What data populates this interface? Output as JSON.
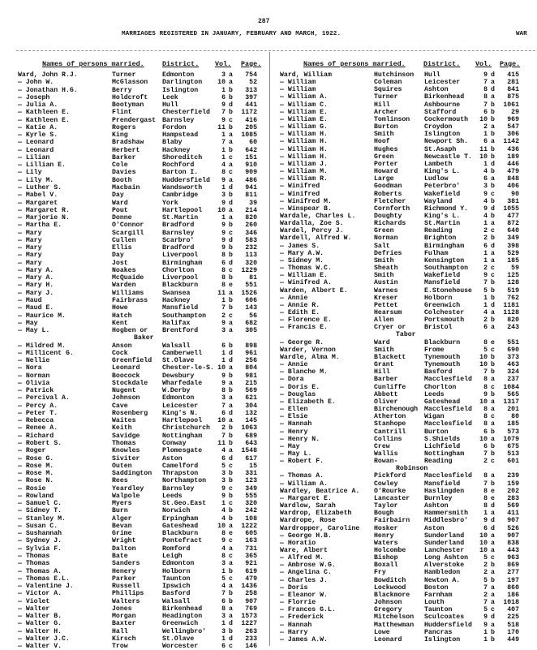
{
  "page_number": "287",
  "title": "MARRIAGES REGISTERED IN JANUARY, FEBRUARY AND MARCH, 1922.",
  "section_mark": "WAR",
  "headers": {
    "names": "Names of persons married.",
    "district": "District.",
    "vol": "Vol.",
    "page": "Page."
  },
  "left_entries": [
    [
      "Ward, John R.J.",
      "Turner",
      "Edmonton",
      "3",
      "a",
      "754"
    ],
    [
      "— John W.",
      "McGlasson",
      "Darlington",
      "10",
      "a",
      "52"
    ],
    [
      "— Jonathan H.G.",
      "Berry",
      "Islington",
      "1",
      "b",
      "313"
    ],
    [
      "— Joseph",
      "Holdcroft",
      "Leek",
      "6",
      "b",
      "397"
    ],
    [
      "— Julia A.",
      "Bootyman",
      "Hull",
      "9",
      "d",
      "441"
    ],
    [
      "— Kathleen E.",
      "Flint",
      "Chesterfield",
      "7",
      "b",
      "1172"
    ],
    [
      "— Kathleen E.",
      "Prendergast",
      "Barnsley",
      "9",
      "c",
      "416"
    ],
    [
      "— Katie A.",
      "Rogers",
      "Fordon",
      "11",
      "b",
      "205"
    ],
    [
      "— Kyrle S.",
      "King",
      "Hampstead",
      "1",
      "a",
      "1085"
    ],
    [
      "— Leonard",
      "Bradshaw",
      "Blaby",
      "7",
      "a",
      "60"
    ],
    [
      "— Leonard",
      "Herbert",
      "Hackney",
      "1",
      "b",
      "642"
    ],
    [
      "— Lilian",
      "Barker",
      "Shoreditch",
      "1",
      "c",
      "151"
    ],
    [
      "— Lillian E.",
      "Cole",
      "Rochford",
      "4",
      "a",
      "910"
    ],
    [
      "— Lily",
      "Davies",
      "Barton I.",
      "8",
      "c",
      "909"
    ],
    [
      "— Lily M.",
      "Booth",
      "Huddersfield",
      "9",
      "a",
      "486"
    ],
    [
      "— Luther S.",
      "Macbain",
      "Wandsworth",
      "1",
      "d",
      "941"
    ],
    [
      "— Mabel V.",
      "Day",
      "Cambridge",
      "3",
      "b",
      "811"
    ],
    [
      "— Margaret",
      "Ward",
      "York",
      "9",
      "d",
      "39"
    ],
    [
      "— Margaret R.",
      "Pout",
      "Hartlepool",
      "10",
      "a",
      "214"
    ],
    [
      "— Marjorie N.",
      "Donne",
      "St.Martin",
      "1",
      "a",
      "820"
    ],
    [
      "— Martha E.",
      "O'Connor",
      "Bradford",
      "9",
      "b",
      "260"
    ],
    [
      "— Mary",
      "Scargill",
      "Barnsley",
      "9",
      "c",
      "346"
    ],
    [
      "— Mary",
      "Cullen",
      "Scarbro'",
      "9",
      "d",
      "583"
    ],
    [
      "— Mary",
      "Ellis",
      "Bradford",
      "9",
      "b",
      "232"
    ],
    [
      "— Mary",
      "Day",
      "Liverpool",
      "8",
      "b",
      "113"
    ],
    [
      "— Mary",
      "Jost",
      "Birmingham",
      "6",
      "d",
      "320"
    ],
    [
      "— Mary A.",
      "Noakes",
      "Chorlton",
      "8",
      "c",
      "1229"
    ],
    [
      "— Mary A.",
      "McQuaide",
      "Liverpool",
      "8",
      "b",
      "81"
    ],
    [
      "— Mary H.",
      "Warden",
      "Blackburn",
      "8",
      "e",
      "551"
    ],
    [
      "— Mary J.",
      "Williams",
      "Swansea",
      "11",
      "a",
      "1526"
    ],
    [
      "— Maud",
      "Fairbrass",
      "Hackney",
      "1",
      "b",
      "606"
    ],
    [
      "— Maud E.",
      "Howe",
      "Mansfield",
      "7",
      "b",
      "143"
    ],
    [
      "— Maurice M.",
      "Hatch",
      "Southampton",
      "2",
      "c",
      "56"
    ],
    [
      "— May",
      "Kent",
      "Halifax",
      "9",
      "a",
      "682"
    ],
    [
      "— May L.",
      "Hogben or",
      "Brentford",
      "3",
      "a",
      "305",
      "Baker"
    ],
    [
      "— Mildred M.",
      "Anson",
      "Walsall",
      "6",
      "b",
      "898"
    ],
    [
      "— Millicent G.",
      "Cock",
      "Camberwell",
      "1",
      "d",
      "961"
    ],
    [
      "— Nellie",
      "Greenfield",
      "St.Olave",
      "1",
      "d",
      "256"
    ],
    [
      "— Nora",
      "Leonard",
      "Chester-le-S.",
      "10",
      "a",
      "804"
    ],
    [
      "— Norman",
      "Boocock",
      "Dewsbury",
      "9",
      "b",
      "981"
    ],
    [
      "— Olivia",
      "Stockdale",
      "Wharfedale",
      "9",
      "a",
      "215"
    ],
    [
      "— Patrick",
      "Nugent",
      "W.Derby",
      "8",
      "b",
      "569"
    ],
    [
      "— Percival A.",
      "Johnson",
      "Edmonton",
      "3",
      "a",
      "621"
    ],
    [
      "— Percy A.",
      "Cave",
      "Leicester",
      "7",
      "a",
      "304"
    ],
    [
      "— Peter T.",
      "Rosenberg",
      "King's N.",
      "6",
      "d",
      "132"
    ],
    [
      "— Rebecca",
      "Waites",
      "Hartlepool",
      "10",
      "a",
      "145"
    ],
    [
      "— Renee A.",
      "Keith",
      "Christchurch",
      "2",
      "b",
      "1063"
    ],
    [
      "— Richard",
      "Savidge",
      "Nottingham",
      "7",
      "b",
      "689"
    ],
    [
      "— Robert S.",
      "Thomas",
      "Conway",
      "11",
      "b",
      "643"
    ],
    [
      "— Roger",
      "Knowles",
      "Plomesgate",
      "4",
      "a",
      "1548"
    ],
    [
      "— Rose G.",
      "Siviter",
      "Aston",
      "6",
      "d",
      "617"
    ],
    [
      "— Rose M.",
      "Outen",
      "Camelford",
      "5",
      "c",
      "15"
    ],
    [
      "— Rose M.",
      "Saddington",
      "Thrapston",
      "3",
      "b",
      "331"
    ],
    [
      "— Rose N.",
      "Rees",
      "Northampton",
      "3",
      "b",
      "123"
    ],
    [
      "— Rosie",
      "Yeardley",
      "Barnsley",
      "9",
      "c",
      "349"
    ],
    [
      "— Rowland",
      "Walpole",
      "Leeds",
      "9",
      "b",
      "555"
    ],
    [
      "— Samuel C.",
      "Myers",
      "St.Geo.East",
      "1",
      "c",
      "320"
    ],
    [
      "— Sidney T.",
      "Burn",
      "Norwich",
      "4",
      "b",
      "242"
    ],
    [
      "— Stanley M.",
      "Alger",
      "Erpingham",
      "4",
      "b",
      "108"
    ],
    [
      "— Susan C.",
      "Bevan",
      "Gateshead",
      "10",
      "a",
      "1222"
    ],
    [
      "— Sushannah",
      "Grime",
      "Blackburn",
      "8",
      "e",
      "605"
    ],
    [
      "— Sydney J.",
      "Wright",
      "Pontefract",
      "9",
      "c",
      "163"
    ],
    [
      "— Sylvia F.",
      "Dalton",
      "Romford",
      "4",
      "a",
      "731"
    ],
    [
      "— Thomas",
      "Bate",
      "Leigh",
      "8",
      "c",
      "365"
    ],
    [
      "— Thomas",
      "Sanders",
      "Edmonton",
      "3",
      "a",
      "921"
    ],
    [
      "— Thomas A.",
      "Henery",
      "Holborn",
      "1",
      "b",
      "619"
    ],
    [
      "— Thomas E.L.",
      "Parker",
      "Taunton",
      "5",
      "c",
      "479"
    ],
    [
      "— Valentine J.",
      "Russell",
      "Ipswich",
      "4",
      "a",
      "1436"
    ],
    [
      "— Victor A.",
      "Phillips",
      "Basford",
      "7",
      "b",
      "258"
    ],
    [
      "— Violet",
      "Walters",
      "Walsall",
      "6",
      "b",
      "907"
    ],
    [
      "— Walter",
      "Jones",
      "Birkenhead",
      "8",
      "a",
      "769"
    ],
    [
      "— Walter B.",
      "Morgan",
      "Headington",
      "3",
      "a",
      "1573"
    ],
    [
      "— Walter G.",
      "Baxter",
      "Greenwich",
      "1",
      "d",
      "1227"
    ],
    [
      "— Walter H.",
      "Hall",
      "Wellingbro'",
      "3",
      "b",
      "263"
    ],
    [
      "— Walter J.C.",
      "Kirsch",
      "St.Olave",
      "1",
      "d",
      "233"
    ],
    [
      "— Walter V.",
      "Trow",
      "Worcester",
      "6",
      "c",
      "146"
    ]
  ],
  "right_entries": [
    [
      "Ward, William",
      "Hutchinson",
      "Hull",
      "9",
      "d",
      "415"
    ],
    [
      "— William",
      "Coleman",
      "Leicester",
      "7",
      "a",
      "281"
    ],
    [
      "— William",
      "Squires",
      "Ashton",
      "8",
      "d",
      "841"
    ],
    [
      "— William A.",
      "Turner",
      "Birkenhead",
      "8",
      "a",
      "875"
    ],
    [
      "— William C.",
      "Hill",
      "Ashbourne",
      "7",
      "b",
      "1061"
    ],
    [
      "— William E.",
      "Archer",
      "Stafford",
      "6",
      "b",
      "29"
    ],
    [
      "— William E.",
      "Tomlinson",
      "Cockermouth",
      "10",
      "b",
      "969"
    ],
    [
      "— William G.",
      "Burton",
      "Croydon",
      "2",
      "a",
      "547"
    ],
    [
      "— William H.",
      "Smith",
      "Islington",
      "1",
      "b",
      "306"
    ],
    [
      "— William H.",
      "Hoof",
      "Newport Sh.",
      "6",
      "a",
      "1142"
    ],
    [
      "— William H.",
      "Hughes",
      "St.Asaph",
      "11",
      "b",
      "436"
    ],
    [
      "— William H.",
      "Green",
      "Newcastle T.",
      "10",
      "b",
      "189"
    ],
    [
      "— William J.",
      "Porter",
      "Lambeth",
      "1",
      "d",
      "446"
    ],
    [
      "— William M.",
      "Howard",
      "King's L.",
      "4",
      "b",
      "479"
    ],
    [
      "— William R.",
      "Large",
      "Ludlow",
      "6",
      "a",
      "848"
    ],
    [
      "— Winifred",
      "Goodman",
      "Peterbro'",
      "3",
      "b",
      "406"
    ],
    [
      "— Winifred",
      "Roberts",
      "Wakefield",
      "9",
      "c",
      "90"
    ],
    [
      "— Winifred M.",
      "Fletcher",
      "Wayland",
      "4",
      "b",
      "381"
    ],
    [
      "— Winspear B.",
      "Cornforth",
      "Richmond Y.",
      "9",
      "d",
      "1055"
    ],
    [
      "Wardale, Charles L.",
      "Doughty",
      "King's L.",
      "4",
      "b",
      "477"
    ],
    [
      "Wardalla, Zoe S.",
      "Richards",
      "St.Martin",
      "1",
      "a",
      "872"
    ],
    [
      "Wardel, Percy J.",
      "Green",
      "Reading",
      "2",
      "c",
      "640"
    ],
    [
      "Wardell, Alfred W.",
      "Norman",
      "Brighton",
      "2",
      "b",
      "349"
    ],
    [
      "— James S.",
      "Salt",
      "Birmingham",
      "6",
      "d",
      "398"
    ],
    [
      "— Mary A.W.",
      "Defries",
      "Fulham",
      "1",
      "a",
      "529"
    ],
    [
      "— Sidney M.",
      "Smith",
      "Kensington",
      "1",
      "a",
      "185"
    ],
    [
      "— Thomas W.C.",
      "Sheath",
      "Southampton",
      "2",
      "c",
      "59"
    ],
    [
      "— William E.",
      "Smith",
      "Wakefield",
      "9",
      "c",
      "125"
    ],
    [
      "— Winifred A.",
      "Austin",
      "Mansfield",
      "7",
      "b",
      "128"
    ],
    [
      "Warden, Albert E.",
      "Warnes",
      "E.Stonehouse",
      "5",
      "b",
      "519"
    ],
    [
      "— Annie",
      "Kreser",
      "Holborn",
      "1",
      "b",
      "762"
    ],
    [
      "— Annie R.",
      "Pettet",
      "Greenwich",
      "1",
      "d",
      "1181"
    ],
    [
      "— Edith E.",
      "Hearsum",
      "Colchester",
      "4",
      "a",
      "1128"
    ],
    [
      "— Florence E.",
      "Allen",
      "Portsmouth",
      "2",
      "b",
      "820"
    ],
    [
      "— Francis E.",
      "Cryer or",
      "Bristol",
      "6",
      "a",
      "243",
      "Tabor"
    ],
    [
      "— George R.",
      "Ward",
      "Blackburn",
      "8",
      "e",
      "551"
    ],
    [
      "Warder, Vernon",
      "Smith",
      "Frome",
      "5",
      "c",
      "690"
    ],
    [
      "Wardle, Alma M.",
      "Blackett",
      "Tynemouth",
      "10",
      "b",
      "373"
    ],
    [
      "— Annie",
      "Grant",
      "Tynemouth",
      "10",
      "b",
      "463"
    ],
    [
      "— Blanche M.",
      "Hill",
      "Basford",
      "7",
      "b",
      "324"
    ],
    [
      "— Dora",
      "Barber",
      "Macclesfield",
      "8",
      "a",
      "237"
    ],
    [
      "— Doris E.",
      "Cunliffe",
      "Chorlton",
      "8",
      "c",
      "1084"
    ],
    [
      "— Douglas",
      "Abbott",
      "Leeds",
      "9",
      "b",
      "565"
    ],
    [
      "— Elizabeth E.",
      "Oliver",
      "Gateshead",
      "10",
      "a",
      "1317"
    ],
    [
      "— Ellen",
      "Birchenough",
      "Macclesfield",
      "8",
      "a",
      "201"
    ],
    [
      "— Elsie",
      "Atherton",
      "Wigan",
      "8",
      "c",
      "80"
    ],
    [
      "— Hannah",
      "Stanhope",
      "Macclesfield",
      "8",
      "a",
      "185"
    ],
    [
      "— Henry",
      "Cantrill",
      "Burton",
      "6",
      "b",
      "573"
    ],
    [
      "— Henry N.",
      "Collins",
      "S.Shields",
      "10",
      "a",
      "1079"
    ],
    [
      "— May",
      "Crew",
      "Lichfield",
      "6",
      "b",
      "675"
    ],
    [
      "— May L.",
      "Wallis",
      "Nottingham",
      "7",
      "b",
      "513"
    ],
    [
      "— Robert F.",
      "Rowan-",
      "Reading",
      "2",
      "c",
      "601",
      "Robinson"
    ],
    [
      "— Thomas A.",
      "Pickford",
      "Macclesfield",
      "8",
      "a",
      "239"
    ],
    [
      "— William A.",
      "Cowley",
      "Mansfield",
      "7",
      "b",
      "159"
    ],
    [
      "Wardley, Beatrice A.",
      "O'Rourke",
      "Haslingden",
      "8",
      "e",
      "202"
    ],
    [
      "— Margaret E.",
      "Lancaster",
      "Burnley",
      "8",
      "e",
      "283"
    ],
    [
      "Wardlow, Sarah",
      "Taylor",
      "Ashton",
      "8",
      "d",
      "569"
    ],
    [
      "Wardrop, Elizabeth",
      "Bough",
      "Hammersmith",
      "1",
      "a",
      "411"
    ],
    [
      "Wardrope, Rose",
      "Fairbairn",
      "Middlesbro'",
      "9",
      "d",
      "907"
    ],
    [
      "Wardropper, Caroline",
      "Hosker",
      "Aston",
      "6",
      "d",
      "526"
    ],
    [
      "— George H.B.",
      "Henry",
      "Sunderland",
      "10",
      "a",
      "907"
    ],
    [
      "— Horatio",
      "Waters",
      "Sunderland",
      "10",
      "a",
      "838"
    ],
    [
      "Ware, Albert",
      "Holcombe",
      "Lanchester",
      "10",
      "a",
      "443"
    ],
    [
      "— Alfred M.",
      "Bishop",
      "Long Ashton",
      "5",
      "c",
      "963"
    ],
    [
      "— Ambrose W.G.",
      "Boxall",
      "Alverstoke",
      "2",
      "b",
      "869"
    ],
    [
      "— Angelina C.",
      "Fry",
      "Hambledon",
      "2",
      "a",
      "277"
    ],
    [
      "— Charles J.",
      "Bowditch",
      "Newton A.",
      "5",
      "b",
      "197"
    ],
    [
      "— Doris",
      "Lockwood",
      "Boston",
      "7",
      "a",
      "860"
    ],
    [
      "— Eleanor W.",
      "Blackmore",
      "Farnham",
      "2",
      "a",
      "186"
    ],
    [
      "— Florrie",
      "Johnson",
      "Louth",
      "7",
      "a",
      "1018"
    ],
    [
      "— Frances G.L.",
      "Gregory",
      "Taunton",
      "5",
      "c",
      "407"
    ],
    [
      "— Frederick",
      "Mitchelson",
      "Sculcoates",
      "9",
      "d",
      "225"
    ],
    [
      "— Hannah",
      "Matthewman",
      "Huddersfield",
      "9",
      "a",
      "518"
    ],
    [
      "— Harry",
      "Lowe",
      "Pancras",
      "1",
      "b",
      "170"
    ],
    [
      "— James A.W.",
      "Leonard",
      "Islington",
      "1",
      "b",
      "449"
    ]
  ]
}
